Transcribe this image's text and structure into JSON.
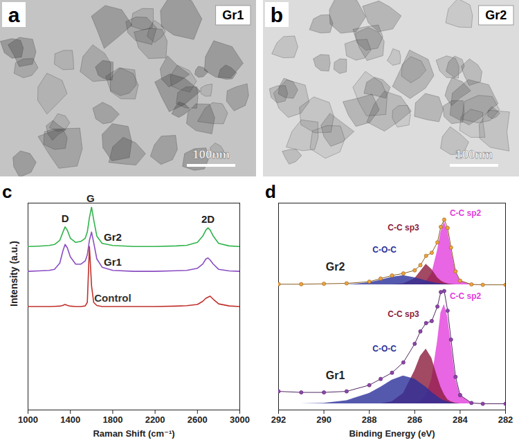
{
  "panels": [
    {
      "letter": "a",
      "label": "Gr1",
      "scale_bar": "100nm"
    },
    {
      "letter": "b",
      "label": "Gr2",
      "scale_bar": "100nm"
    }
  ],
  "chart_data": [
    {
      "letter": "c",
      "type": "line",
      "x_label": "Raman Shift (cm⁻¹)",
      "y_label": "Intensity (a.u.)",
      "x": [
        1000,
        1100,
        1200,
        1250,
        1300,
        1330,
        1350,
        1370,
        1400,
        1450,
        1500,
        1540,
        1560,
        1580,
        1600,
        1620,
        1650,
        1700,
        1800,
        2000,
        2200,
        2400,
        2500,
        2600,
        2650,
        2680,
        2700,
        2720,
        2750,
        2800,
        2900,
        3000
      ],
      "series": [
        {
          "name": "Gr2",
          "color": "#2fb34a",
          "values": [
            79,
            79.2,
            79.5,
            80,
            82,
            86,
            88.5,
            87,
            83,
            81,
            81.5,
            83,
            86,
            93,
            98,
            92,
            84,
            80.5,
            79.5,
            79,
            79,
            79.3,
            79.6,
            81,
            84,
            87,
            88,
            87,
            84,
            80.5,
            79.3,
            79
          ]
        },
        {
          "name": "Gr1",
          "color": "#8a4cc2",
          "values": [
            67,
            67.2,
            67.5,
            68,
            71,
            77,
            80,
            78.5,
            74,
            70.5,
            70.5,
            72,
            75,
            82,
            86,
            81,
            73,
            69,
            67.5,
            67,
            67,
            67.3,
            67.5,
            68.5,
            70.5,
            73,
            73.5,
            72.5,
            70.5,
            68,
            67.2,
            67
          ]
        },
        {
          "name": "Control",
          "color": "#c0302b",
          "values": [
            50,
            50,
            50,
            50.1,
            50.2,
            50.6,
            51,
            50.6,
            50.2,
            50,
            50,
            50.3,
            52,
            79,
            60,
            52,
            50.5,
            50,
            50,
            50,
            50,
            50.2,
            50.4,
            51,
            52.5,
            54,
            54.5,
            55,
            53.5,
            51.3,
            50.3,
            50
          ]
        }
      ],
      "peak_labels": [
        {
          "text": "D",
          "x": 1350
        },
        {
          "text": "G",
          "x": 1590
        },
        {
          "text": "2D",
          "x": 2700
        }
      ],
      "xlim": [
        1000,
        3000
      ],
      "xticks": [
        1000,
        1400,
        1800,
        2200,
        2600,
        3000
      ],
      "ylim": [
        0,
        100
      ],
      "tick_labels": "x"
    },
    {
      "letter": "d",
      "type": "area",
      "x_label": "Binding Energy (eV)",
      "x": [
        292,
        291,
        290,
        289,
        288,
        287.5,
        287,
        286.5,
        286,
        285.75,
        285.5,
        285.25,
        285,
        284.85,
        284.7,
        284.55,
        284.4,
        284.2,
        284,
        283.5,
        283,
        282
      ],
      "series": [
        {
          "name": "Gr2",
          "color": "#f2a33a",
          "marker": "circle",
          "baseline": 60.5,
          "values": [
            60.8,
            60.8,
            61,
            61.2,
            62,
            63.5,
            65,
            66,
            67.5,
            70,
            74.5,
            76,
            81,
            88.5,
            92,
            88,
            78.5,
            67,
            62.5,
            60.7,
            60.5,
            60.5
          ],
          "components": [
            {
              "name": "C-C sp2",
              "color": "#e23fdc",
              "values": [
                60.5,
                60.5,
                60.5,
                60.5,
                60.5,
                60.5,
                60.5,
                60.5,
                60.5,
                61,
                62,
                66,
                77,
                86,
                91,
                87,
                78,
                67,
                62.5,
                60.6,
                60.5,
                60.5
              ]
            },
            {
              "name": "C-C sp3",
              "color": "#8b1c3c",
              "values": [
                60.5,
                60.5,
                60.5,
                60.5,
                60.5,
                60.5,
                60.5,
                61,
                63.5,
                67,
                70.5,
                68,
                64,
                62.5,
                61.5,
                61,
                60.7,
                60.5,
                60.5,
                60.5,
                60.5,
                60.5
              ]
            },
            {
              "name": "C-O-C",
              "color": "#2b2f9a",
              "values": [
                60.5,
                60.5,
                60.5,
                60.5,
                61.5,
                62.8,
                64.2,
                65,
                64,
                63.3,
                62.5,
                61.8,
                61.2,
                61,
                60.8,
                60.7,
                60.6,
                60.5,
                60.5,
                60.5,
                60.5,
                60.5
              ]
            }
          ]
        },
        {
          "name": "Gr1",
          "color": "#8e44ad",
          "marker": "circle",
          "baseline": 3,
          "values": [
            9,
            8.5,
            8.5,
            9,
            12,
            15,
            18,
            23,
            32,
            38,
            42,
            43,
            50,
            57,
            57.5,
            48,
            34,
            16,
            7.2,
            3.4,
            3,
            3
          ],
          "components": [
            {
              "name": "C-C sp2",
              "color": "#e23fdc",
              "values": [
                3,
                3,
                3,
                3,
                3,
                3,
                3,
                3,
                3,
                4,
                7,
                15,
                33,
                47,
                51,
                45,
                32,
                15,
                7,
                3.3,
                3,
                3
              ]
            },
            {
              "name": "C-C sp3",
              "color": "#8b1c3c",
              "values": [
                3,
                3,
                3,
                3,
                3,
                3,
                4,
                8,
                19,
                26,
                29.5,
                25,
                16,
                11,
                7.5,
                5,
                4,
                3.3,
                3,
                3,
                3,
                3
              ]
            },
            {
              "name": "C-O-C",
              "color": "#2b2f9a",
              "values": [
                3,
                3,
                3.3,
                4.5,
                8,
                11,
                14.5,
                16.5,
                15,
                13,
                11,
                8.5,
                6.5,
                5.3,
                4.5,
                4,
                3.5,
                3.2,
                3,
                3,
                3,
                3
              ]
            }
          ]
        }
      ],
      "xlim": [
        292,
        282
      ],
      "xticks": [
        292,
        290,
        288,
        286,
        284,
        282
      ],
      "ylim": [
        0,
        100
      ],
      "tick_labels": "x"
    }
  ]
}
